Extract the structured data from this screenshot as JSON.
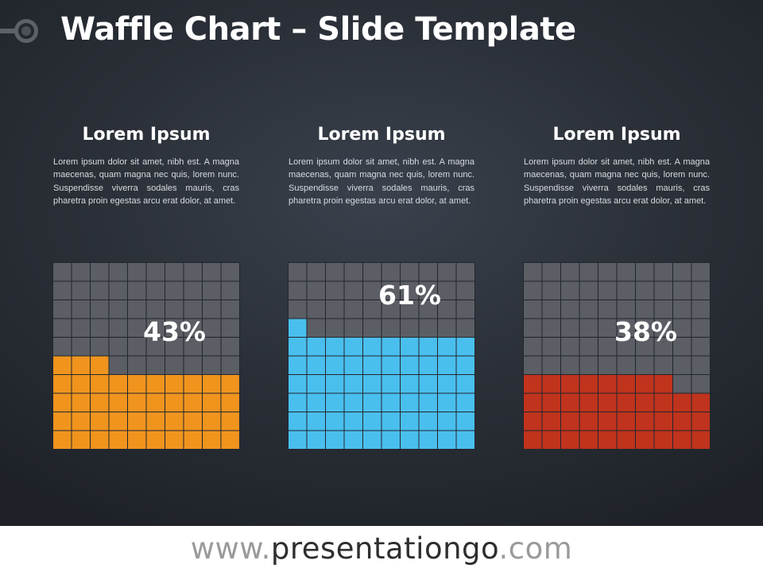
{
  "title": "Waffle Chart – Slide Template",
  "columns": [
    {
      "heading": "Lorem Ipsum",
      "body": "Lorem ipsum dolor sit amet, nibh est. A magna maecenas, quam magna nec quis, lorem nunc. Suspendisse viverra sodales mauris, cras pharetra proin egestas arcu erat dolor, at amet."
    },
    {
      "heading": "Lorem Ipsum",
      "body": "Lorem ipsum dolor sit amet, nibh est. A magna maecenas, quam magna nec quis, lorem nunc. Suspendisse viverra sodales mauris, cras pharetra proin egestas arcu erat dolor, at amet."
    },
    {
      "heading": "Lorem Ipsum",
      "body": "Lorem ipsum dolor sit amet, nibh est. A magna maecenas, quam magna nec quis, lorem nunc. Suspendisse viverra sodales mauris, cras pharetra proin egestas arcu erat dolor, at amet."
    }
  ],
  "chart_data": [
    {
      "type": "waffle",
      "grid": [
        10,
        10
      ],
      "value": 43,
      "label": "43%",
      "fill_color": "#f0941e",
      "empty_color": "#5b5e64"
    },
    {
      "type": "waffle",
      "grid": [
        10,
        10
      ],
      "value": 61,
      "label": "61%",
      "fill_color": "#49bfee",
      "empty_color": "#5b5e64"
    },
    {
      "type": "waffle",
      "grid": [
        10,
        10
      ],
      "value": 38,
      "label": "38%",
      "fill_color": "#c0331d",
      "empty_color": "#5b5e64"
    }
  ],
  "footer": {
    "prefix": "www.",
    "brand": "presentationgo",
    "suffix": ".com"
  }
}
